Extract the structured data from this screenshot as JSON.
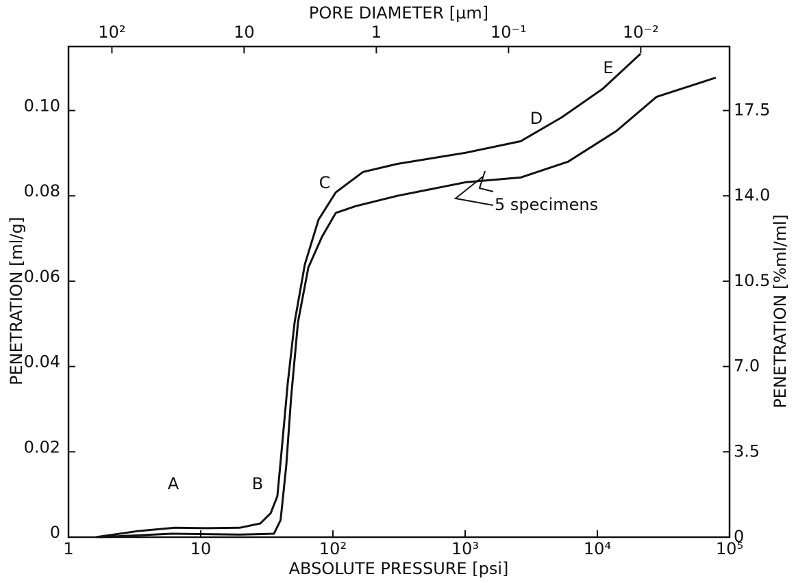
{
  "chart_data": {
    "type": "line",
    "x_label": "ABSOLUTE PRESSURE [psi]",
    "y_label": "PENETRATION [ml/g]",
    "y2_label": "PENETRATION [%ml/ml]",
    "x2_label": "PORE DIAMETER [µm]",
    "xscale": "log",
    "xlim": [
      1,
      100000
    ],
    "xticks": [
      1,
      10,
      {
        "value": 100,
        "label": "10²"
      },
      {
        "value": 1000,
        "label": "10³"
      },
      {
        "value": 10000,
        "label": "10⁴"
      },
      {
        "value": 100000,
        "label": "10⁵"
      }
    ],
    "x2lim": [
      213,
      0.00213
    ],
    "x2ticks": [
      {
        "value": 100,
        "label": "10²"
      },
      10,
      1,
      {
        "value": 0.1,
        "label": "10⁻¹"
      },
      {
        "value": 0.01,
        "label": "10⁻²"
      }
    ],
    "ylim": [
      0,
      0.115
    ],
    "yticks": [
      0,
      0.02,
      0.04,
      0.06,
      0.08,
      {
        "value": 0.1,
        "label": "0.10"
      }
    ],
    "y2lim": [
      0,
      20.125
    ],
    "y2ticks": [
      0,
      3.5,
      {
        "value": 7,
        "label": "7.0"
      },
      10.5,
      {
        "value": 14,
        "label": "14.0"
      },
      17.5
    ],
    "series": [
      {
        "color": "#111111",
        "x": [
          1.61,
          3.3,
          6.35,
          10.9,
          19.7,
          28.2,
          33.8,
          38.0,
          41.4,
          45.5,
          51.3,
          61.4,
          77.8,
          105,
          169,
          307,
          1012,
          2630,
          5380,
          11000,
          21200
        ],
        "values": [
          0,
          0.0014,
          0.0022,
          0.0021,
          0.0022,
          0.0032,
          0.0056,
          0.0096,
          0.022,
          0.036,
          0.0504,
          0.064,
          0.0744,
          0.0808,
          0.0856,
          0.0875,
          0.0901,
          0.0928,
          0.0984,
          0.1051,
          0.1133
        ]
      },
      {
        "color": "#111111",
        "x": [
          1.71,
          5.99,
          19.7,
          35.8,
          40.2,
          44.4,
          48.3,
          54.4,
          65.2,
          82.6,
          105,
          149,
          307,
          1012,
          2630,
          6000,
          13950,
          28000,
          78700
        ],
        "values": [
          0,
          0.0008,
          0.0006,
          0.0008,
          0.004,
          0.0168,
          0.0328,
          0.0504,
          0.0632,
          0.0704,
          0.076,
          0.0776,
          0.08,
          0.0832,
          0.0843,
          0.088,
          0.0952,
          0.1032,
          0.1077
        ]
      }
    ],
    "annotations": [
      "A",
      "B",
      "C",
      "D",
      "E",
      "5 specimens"
    ],
    "grid": false
  }
}
